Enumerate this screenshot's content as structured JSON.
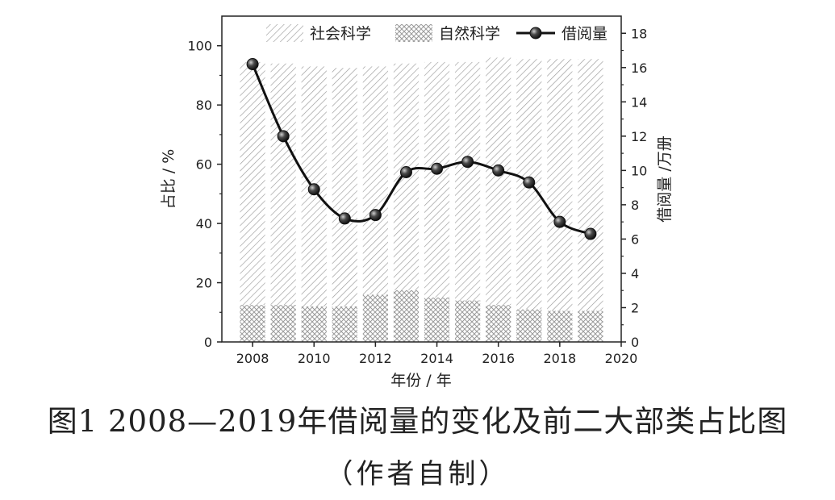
{
  "chart_data": {
    "type": "bar+line",
    "x": [
      2008,
      2009,
      2010,
      2011,
      2012,
      2013,
      2014,
      2015,
      2016,
      2017,
      2018,
      2019
    ],
    "series": [
      {
        "name": "社会科学",
        "kind": "stacked-bar",
        "axis": "left",
        "values": [
          82,
          81.5,
          81,
          80.5,
          77,
          76.5,
          79.5,
          80.5,
          83.5,
          84.5,
          85,
          85
        ]
      },
      {
        "name": "自然科学",
        "kind": "stacked-bar",
        "axis": "left",
        "values": [
          12.5,
          12.5,
          12,
          12,
          16,
          17.5,
          15,
          14,
          12.5,
          11,
          10.5,
          10.5
        ]
      },
      {
        "name": "借阅量",
        "kind": "line",
        "axis": "right",
        "values": [
          16.2,
          12.0,
          8.9,
          7.2,
          7.4,
          9.9,
          10.1,
          10.5,
          10.0,
          9.3,
          7.0,
          6.3
        ]
      }
    ],
    "xlabel": "年份 / 年",
    "ylabel_left": "占比 / %",
    "ylabel_right": "借阅量 /万册",
    "xlim": [
      2007,
      2020
    ],
    "ylim_left": [
      0,
      110
    ],
    "ylim_right": [
      0,
      19
    ],
    "xticks": [
      "2008",
      "2010",
      "2012",
      "2014",
      "2016",
      "2018",
      "2020"
    ],
    "yticks_left": [
      "0",
      "20",
      "40",
      "60",
      "80",
      "100"
    ],
    "yticks_right": [
      "0",
      "2",
      "4",
      "6",
      "8",
      "10",
      "12",
      "14",
      "16",
      "18"
    ],
    "legend_placement": "top",
    "grid": false
  },
  "caption": {
    "main": "图1 2008—2019年借阅量的变化及前二大部类占比图",
    "sub": "（作者自制）"
  }
}
